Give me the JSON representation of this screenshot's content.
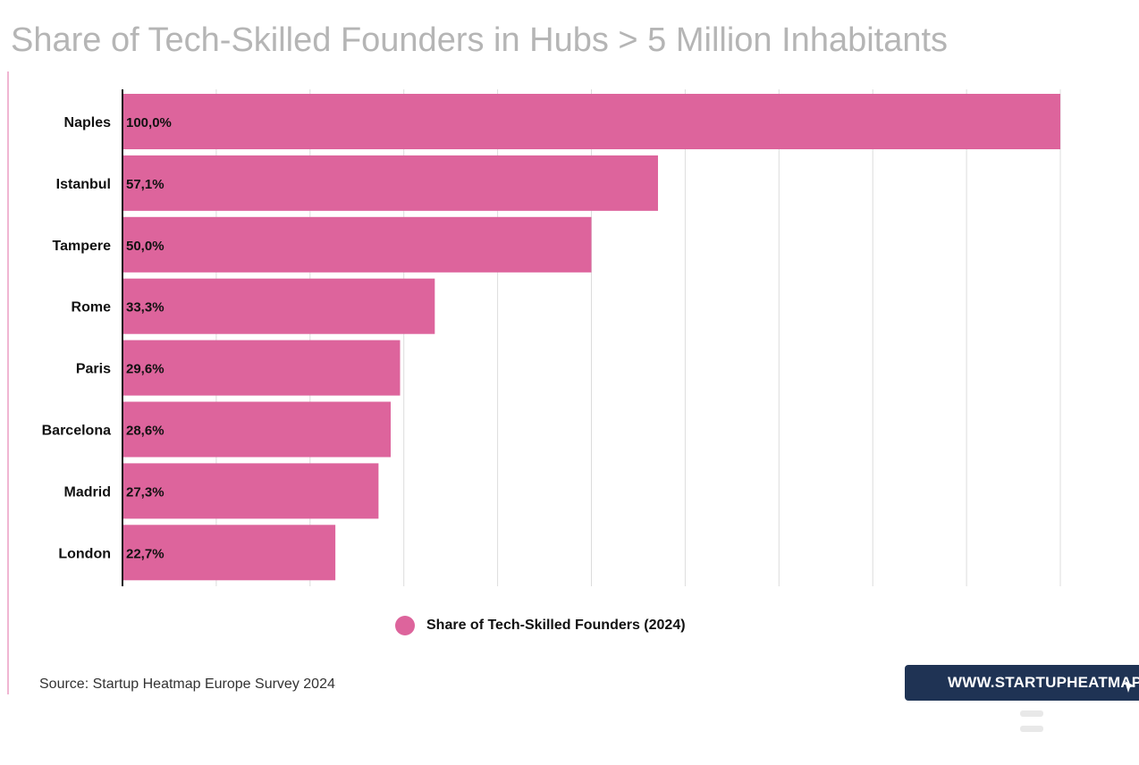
{
  "title": "Share of Tech-Skilled Founders in Hubs > 5 Million Inhabitants",
  "source": "Source: Startup Heatmap Europe Survey 2024",
  "brand": {
    "label": "WWW.STARTUPHEATMAP.EU",
    "color": "#1f3354"
  },
  "colors": {
    "bar": "#dd649c",
    "grid": "#dcdcdc",
    "axis": "#111111",
    "title": "#b5b5b5"
  },
  "chart_data": {
    "type": "bar",
    "orientation": "horizontal",
    "categories": [
      "Naples",
      "Istanbul",
      "Tampere",
      "Rome",
      "Paris",
      "Barcelona",
      "Madrid",
      "London"
    ],
    "series": [
      {
        "name": "Share of Tech-Skilled Founders (2024)",
        "values": [
          100.0,
          57.1,
          50.0,
          33.3,
          29.6,
          28.6,
          27.3,
          22.7
        ],
        "labels": [
          "100,0%",
          "57,1%",
          "50,0%",
          "33,3%",
          "29,6%",
          "28,6%",
          "27,3%",
          "22,7%"
        ]
      }
    ],
    "title": "Share of Tech-Skilled Founders in Hubs > 5 Million Inhabitants",
    "xlim": [
      0,
      100
    ],
    "grid": true,
    "grid_lines": 10,
    "legend_position": "bottom-center"
  }
}
